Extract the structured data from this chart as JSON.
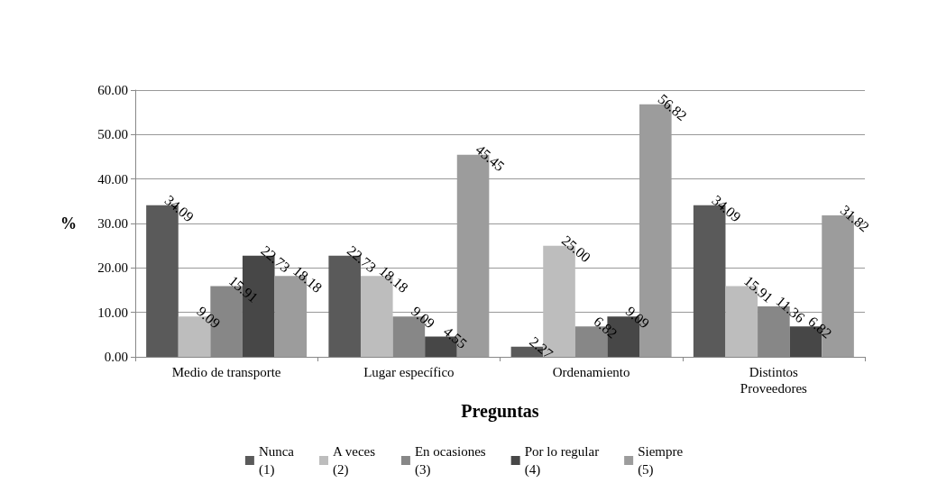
{
  "chart_data": {
    "type": "bar",
    "xlabel": "Preguntas",
    "ylabel": "%",
    "categories": [
      "Medio de transporte",
      "Lugar específico",
      "Ordenamiento",
      "Distintos\nProveedores"
    ],
    "series": [
      {
        "name": "Nunca\n(1)",
        "color": "#5a5a5a",
        "values": [
          34.09,
          22.73,
          2.27,
          34.09
        ],
        "value_labels": [
          "34.09",
          "22.73",
          "2.27",
          "34.09"
        ]
      },
      {
        "name": "A veces\n(2)",
        "color": "#bdbdbd",
        "values": [
          9.09,
          18.18,
          25.0,
          15.91
        ],
        "value_labels": [
          "9.09",
          "18.18",
          "25.00",
          "15.91"
        ]
      },
      {
        "name": "En ocasiones\n(3)",
        "color": "#878787",
        "values": [
          15.91,
          9.09,
          6.82,
          11.36
        ],
        "value_labels": [
          "15.91",
          "9.09",
          "6.82",
          "11.36"
        ]
      },
      {
        "name": "Por lo regular\n(4)",
        "color": "#474747",
        "values": [
          22.73,
          4.55,
          9.09,
          6.82
        ],
        "value_labels": [
          "22.73",
          "4.55",
          "9.09",
          "6.82"
        ]
      },
      {
        "name": "Siempre\n(5)",
        "color": "#9c9c9c",
        "values": [
          18.18,
          45.45,
          56.82,
          31.82
        ],
        "value_labels": [
          "18.18",
          "45.45",
          "56.82",
          "31.82"
        ]
      }
    ],
    "ylim": [
      0,
      60
    ],
    "yticks": [
      {
        "value": 0,
        "label": "0.00"
      },
      {
        "value": 10,
        "label": "10.00"
      },
      {
        "value": 20,
        "label": "20.00"
      },
      {
        "value": 30,
        "label": "30.00"
      },
      {
        "value": 40,
        "label": "40.00"
      },
      {
        "value": 50,
        "label": "50.00"
      },
      {
        "value": 60,
        "label": "60.00"
      }
    ],
    "grid": "y",
    "legend": "bottom"
  }
}
